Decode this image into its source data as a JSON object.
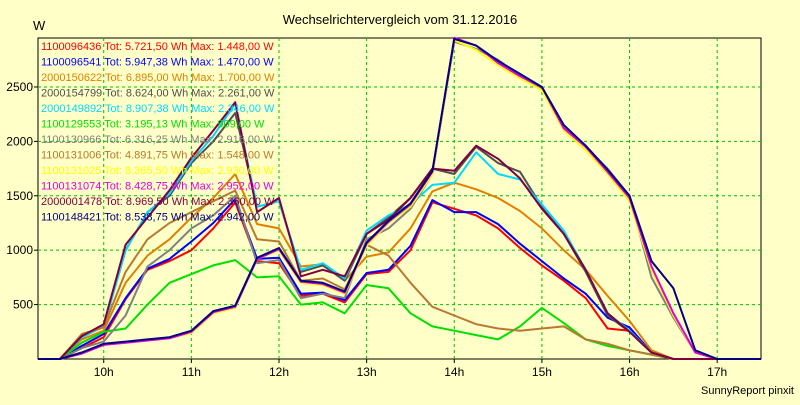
{
  "chart_data": {
    "type": "line",
    "title": "Wechselrichtervergleich vom 31.12.2016",
    "ylabel": "W",
    "footer": "SunnyReport pinxit",
    "ylim": [
      0,
      2950
    ],
    "xlim": [
      9.25,
      17.5
    ],
    "grid": true,
    "legend_position": "top-left",
    "x_ticks": [
      10,
      11,
      12,
      13,
      14,
      15,
      16,
      17
    ],
    "x_tick_labels": [
      "10h",
      "11h",
      "12h",
      "13h",
      "14h",
      "15h",
      "16h",
      "17h"
    ],
    "y_ticks": [
      500,
      1000,
      1500,
      2000,
      2500
    ],
    "y_tick_labels": [
      "500",
      "1000",
      "1500",
      "2000",
      "2500"
    ],
    "x": [
      9.25,
      9.5,
      9.75,
      10.0,
      10.25,
      10.5,
      10.75,
      11.0,
      11.25,
      11.5,
      11.75,
      12.0,
      12.25,
      12.5,
      12.75,
      13.0,
      13.25,
      13.5,
      13.75,
      14.0,
      14.25,
      14.5,
      14.75,
      15.0,
      15.25,
      15.5,
      15.75,
      16.0,
      16.25,
      16.5,
      16.75,
      17.0,
      17.25,
      17.5
    ],
    "series": [
      {
        "name": "1100096436",
        "legend": "1100096436 Tot: 5.721,50 Wh Max: 1.448,00 W",
        "color": "#ff0000",
        "values": [
          0,
          0,
          100,
          200,
          550,
          820,
          900,
          1000,
          1200,
          1440,
          900,
          880,
          580,
          600,
          520,
          780,
          800,
          1000,
          1440,
          1380,
          1320,
          1200,
          1020,
          860,
          720,
          560,
          280,
          260,
          60,
          0,
          0,
          0,
          0,
          0
        ]
      },
      {
        "name": "1100096541",
        "legend": "1100096541 Tot: 5.947,38 Wh Max: 1.470,00 W",
        "color": "#0000ff",
        "values": [
          0,
          0,
          120,
          230,
          560,
          830,
          920,
          1080,
          1250,
          1470,
          920,
          930,
          600,
          610,
          540,
          790,
          820,
          1040,
          1460,
          1350,
          1350,
          1240,
          1060,
          900,
          740,
          600,
          380,
          290,
          60,
          0,
          0,
          0,
          0,
          0
        ]
      },
      {
        "name": "2000150622",
        "legend": "2000150622 Tot: 6.895,00 Wh Max: 1.700,00 W",
        "color": "#e08000",
        "values": [
          0,
          0,
          180,
          260,
          700,
          950,
          1100,
          1300,
          1480,
          1700,
          1240,
          1200,
          850,
          870,
          720,
          940,
          980,
          1200,
          1540,
          1620,
          1560,
          1480,
          1360,
          1200,
          1000,
          820,
          580,
          350,
          80,
          0,
          0,
          0,
          0,
          0
        ]
      },
      {
        "name": "2000154799",
        "legend": "2000154799 Tot: 8.624,00 Wh Max: 2.261,00 W",
        "color": "#505050",
        "values": [
          0,
          0,
          200,
          300,
          1000,
          1350,
          1500,
          1800,
          2000,
          2261,
          1400,
          1450,
          800,
          860,
          720,
          1150,
          1300,
          1480,
          1750,
          1700,
          1950,
          1800,
          1720,
          1400,
          1150,
          800,
          400,
          250,
          60,
          0,
          0,
          0,
          0,
          0
        ]
      },
      {
        "name": "2000149892",
        "legend": "2000149892 Tot: 8.907,38 Wh Max: 2.346,00 W",
        "color": "#00d8ff",
        "values": [
          0,
          0,
          200,
          300,
          1000,
          1350,
          1520,
          1820,
          2050,
          2346,
          1400,
          1450,
          820,
          880,
          740,
          1180,
          1320,
          1420,
          1600,
          1620,
          1900,
          1700,
          1650,
          1420,
          1180,
          820,
          420,
          260,
          60,
          0,
          0,
          0,
          0,
          0
        ]
      },
      {
        "name": "1100129553",
        "legend": "1100129553 Tot: 3.195,13 Wh Max: 909,00 W",
        "color": "#00e000",
        "values": [
          0,
          0,
          150,
          250,
          280,
          500,
          700,
          780,
          860,
          909,
          750,
          760,
          500,
          520,
          420,
          680,
          650,
          420,
          300,
          260,
          220,
          180,
          300,
          470,
          330,
          180,
          120,
          80,
          40,
          0,
          0,
          0,
          0,
          0
        ]
      },
      {
        "name": "1100130966",
        "legend": "1100130966 Tot: 6.316,25 Wh Max: 2.916,00 W",
        "color": "#808080",
        "values": [
          0,
          0,
          100,
          160,
          400,
          850,
          1000,
          1200,
          1320,
          1500,
          880,
          910,
          560,
          600,
          560,
          1100,
          1200,
          1380,
          1700,
          2916,
          2850,
          2750,
          2600,
          2480,
          2150,
          1950,
          1750,
          1500,
          750,
          380,
          60,
          0,
          0,
          0
        ]
      },
      {
        "name": "1100131006",
        "legend": "1100131006 Tot: 4.891,75 Wh Max: 1.548,00 W",
        "color": "#b87830",
        "values": [
          0,
          0,
          230,
          290,
          800,
          1100,
          1250,
          1350,
          1450,
          1548,
          1100,
          1080,
          720,
          740,
          640,
          1050,
          950,
          700,
          480,
          400,
          320,
          280,
          260,
          280,
          300,
          180,
          140,
          80,
          40,
          0,
          0,
          0,
          0,
          0
        ]
      },
      {
        "name": "1100131025",
        "legend": "1100131025 Tot: 8.365,50 Wh Max: 2.930,00 W",
        "color": "#ffff00",
        "values": [
          0,
          0,
          50,
          130,
          150,
          170,
          190,
          240,
          420,
          470,
          920,
          1000,
          700,
          680,
          600,
          1040,
          1250,
          1400,
          1700,
          2930,
          2840,
          2700,
          2580,
          2470,
          2100,
          1920,
          1700,
          1450,
          820,
          400,
          60,
          0,
          0,
          0
        ]
      },
      {
        "name": "1100131074",
        "legend": "1100131074 Tot: 8.428,75 Wh Max: 2.952,00 W",
        "color": "#e000e0",
        "values": [
          0,
          0,
          50,
          130,
          150,
          170,
          190,
          250,
          430,
          480,
          920,
          1010,
          710,
          690,
          610,
          1060,
          1260,
          1420,
          1720,
          2952,
          2880,
          2720,
          2600,
          2500,
          2120,
          1950,
          1720,
          1480,
          850,
          420,
          60,
          0,
          0,
          0
        ]
      },
      {
        "name": "2000001478",
        "legend": "2000001478 Tot: 8.969,50 Wh Max: 2.360,00 W",
        "color": "#800040",
        "values": [
          0,
          0,
          210,
          320,
          1050,
          1300,
          1550,
          1850,
          2100,
          2360,
          1350,
          1480,
          760,
          820,
          760,
          1150,
          1280,
          1480,
          1750,
          1730,
          1960,
          1840,
          1660,
          1380,
          1150,
          820,
          420,
          250,
          60,
          0,
          0,
          0,
          0,
          0
        ]
      },
      {
        "name": "1100148421",
        "legend": "1100148421 Tot: 8.538,75 Wh Max: 2.942,00 W",
        "color": "#000080",
        "values": [
          0,
          0,
          60,
          140,
          160,
          180,
          200,
          260,
          440,
          490,
          930,
          1020,
          720,
          700,
          620,
          1070,
          1270,
          1430,
          1730,
          2942,
          2880,
          2740,
          2620,
          2500,
          2150,
          1960,
          1740,
          1500,
          900,
          650,
          80,
          0,
          0,
          0
        ]
      }
    ]
  }
}
